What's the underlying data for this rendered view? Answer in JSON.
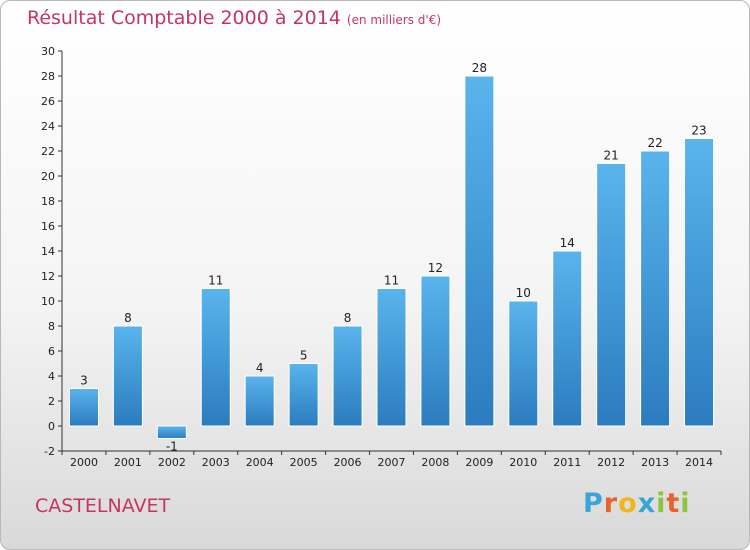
{
  "header": {
    "title": "Résultat Comptable 2000 à 2014",
    "unit": "(en milliers d'€)"
  },
  "footer": {
    "commune": "CASTELNAVET",
    "logo_letters": [
      "P",
      "r",
      "o",
      "x",
      "i",
      "t",
      "i"
    ],
    "logo_colors": [
      "#3aa3d8",
      "#e8632b",
      "#f2b51c",
      "#3aa3d8",
      "#8cc63f",
      "#e8632b",
      "#8cc63f"
    ]
  },
  "chart_data": {
    "type": "bar",
    "categories": [
      "2000",
      "2001",
      "2002",
      "2003",
      "2004",
      "2005",
      "2006",
      "2007",
      "2008",
      "2009",
      "2010",
      "2011",
      "2012",
      "2013",
      "2014"
    ],
    "values": [
      3,
      8,
      -1,
      11,
      4,
      5,
      8,
      11,
      12,
      28,
      10,
      14,
      21,
      22,
      23
    ],
    "title": "Résultat Comptable 2000 à 2014",
    "xlabel": "",
    "ylabel": "",
    "ylim": [
      -2,
      30
    ],
    "yticks": [
      -2,
      0,
      2,
      4,
      6,
      8,
      10,
      12,
      14,
      16,
      18,
      20,
      22,
      24,
      26,
      28,
      30
    ],
    "grid": false,
    "bar_color_top": "#5ab4ec",
    "bar_color_bottom": "#2b7cbf"
  }
}
